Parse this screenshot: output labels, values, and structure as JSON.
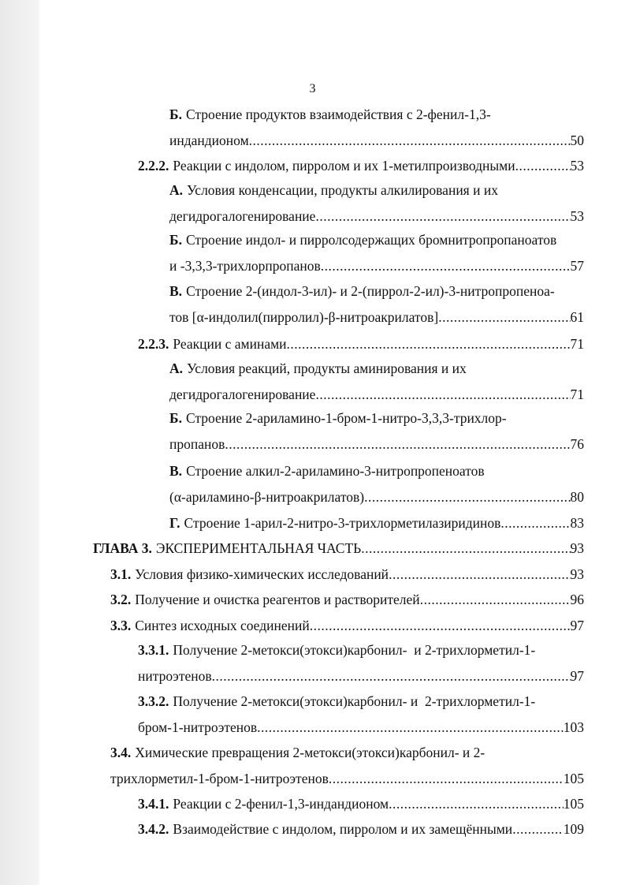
{
  "page_number": "3",
  "entries": [
    {
      "num": "Б.",
      "lines": [
        "Строение продуктов взаимодействия с 2-фенил-1,3-",
        "индандионом"
      ],
      "page": 50
    },
    {
      "num": "2.2.2.",
      "lines": [
        "Реакции с индолом, пирролом и их 1-метилпроизводными"
      ],
      "page": 53
    },
    {
      "num": "А.",
      "lines": [
        "Условия конденсации, продукты алкилирования и их",
        "дегидрогалогенирование"
      ],
      "page": 53
    },
    {
      "num": "Б.",
      "lines": [
        "Строение индол- и пирролсодержащих бромнитропропаноатов",
        "и -3,3,3-трихлорпропанов"
      ],
      "page": 57
    },
    {
      "num": "В.",
      "lines": [
        "Строение 2-(индол-3-ил)- и 2-(пиррол-2-ил)-3-нитропропеноа-",
        "тов [α-индолил(пирролил)-β-нитроакрилатов]"
      ],
      "page": 61
    },
    {
      "num": "2.2.3.",
      "lines": [
        "Реакции с аминами"
      ],
      "page": 71
    },
    {
      "num": "А.",
      "lines": [
        "Условия реакций, продукты аминирования и их",
        "дегидрогалогенирование"
      ],
      "page": 71
    },
    {
      "num": "Б.",
      "lines": [
        "Строение 2-ариламино-1-бром-1-нитро-3,3,3-трихлор-",
        "пропанов"
      ],
      "page": 76
    },
    {
      "num": "В.",
      "lines": [
        "Строение алкил-2-ариламино-3-нитропропеноатов",
        "(α-ариламино-β-нитроакрилатов)"
      ],
      "page": 80
    },
    {
      "num": "Г.",
      "lines": [
        "Строение 1-арил-2-нитро-3-трихлорметилазиридинов"
      ],
      "page": 83
    },
    {
      "num": "ГЛАВА 3.",
      "lines": [
        "ЭКСПЕРИМЕНТАЛЬНАЯ ЧАСТЬ"
      ],
      "page": 93
    },
    {
      "num": "3.1.",
      "lines": [
        "Условия физико-химических исследований"
      ],
      "page": 93
    },
    {
      "num": "3.2.",
      "lines": [
        "Получение и очистка реагентов и растворителей"
      ],
      "page": 96
    },
    {
      "num": "3.3.",
      "lines": [
        "Синтез исходных соединений"
      ],
      "page": 97
    },
    {
      "num": "3.3.1.",
      "lines": [
        "Получение 2-метокси(этокси)карбонил-  и 2-трихлорметил-1-",
        "нитроэтенов"
      ],
      "page": 97
    },
    {
      "num": "3.3.2.",
      "lines": [
        "Получение 2-метокси(этокси)карбонил- и  2-трихлорметил-1-",
        "бром-1-нитроэтенов"
      ],
      "page": 103
    },
    {
      "num": "3.4.",
      "lines": [
        "Химические превращения 2-метокси(этокси)карбонил- и 2-",
        "трихлорметил-1-бром-1-нитроэтенов"
      ],
      "page": 105
    },
    {
      "num": "3.4.1.",
      "lines": [
        "Реакции с 2-фенил-1,3-индандионом"
      ],
      "page": 105
    },
    {
      "num": "3.4.2.",
      "lines": [
        "Взаимодействие с индолом, пирролом и их замещёнными"
      ],
      "page": 109
    }
  ]
}
